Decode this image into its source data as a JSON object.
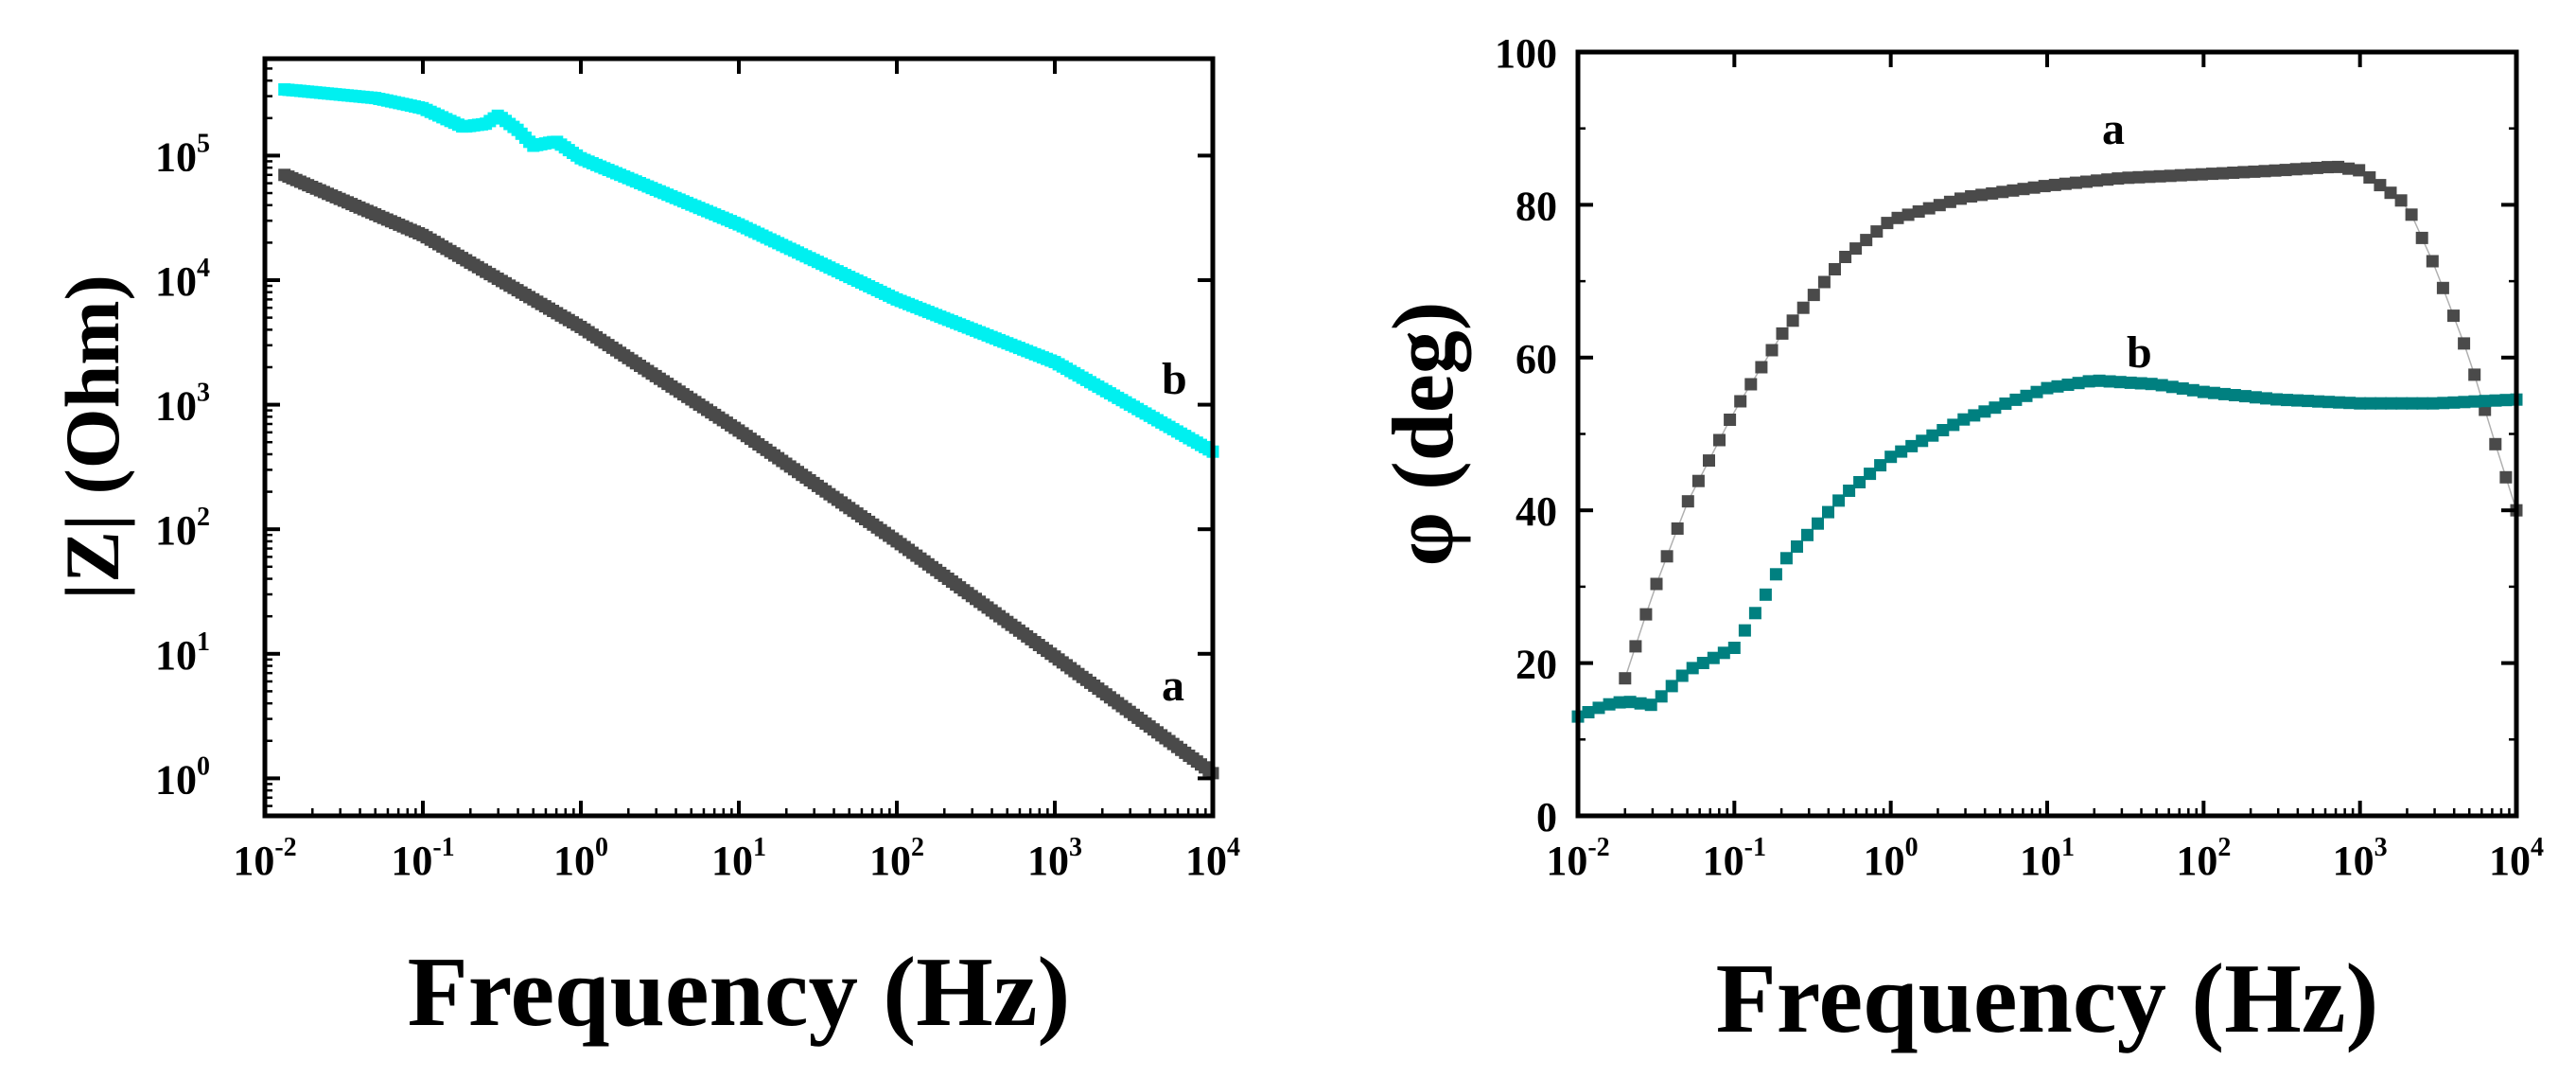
{
  "chart_data": [
    {
      "type": "scatter",
      "xscale": "log",
      "yscale": "log",
      "xlabel": "Frequency (Hz)",
      "ylabel": "|Z| (Ohm)",
      "xlim": [
        0.01,
        10000
      ],
      "ylim": [
        0.5,
        600000
      ],
      "xticks": [
        0.01,
        0.1,
        1,
        10,
        100,
        1000,
        10000
      ],
      "xtick_labels": [
        {
          "base": "10",
          "exp": "-2"
        },
        {
          "base": "10",
          "exp": "-1"
        },
        {
          "base": "10",
          "exp": "0"
        },
        {
          "base": "10",
          "exp": "1"
        },
        {
          "base": "10",
          "exp": "2"
        },
        {
          "base": "10",
          "exp": "3"
        },
        {
          "base": "10",
          "exp": "4"
        }
      ],
      "yticks": [
        1,
        10,
        100,
        1000,
        10000,
        100000
      ],
      "ytick_labels": [
        {
          "base": "10",
          "exp": "0"
        },
        {
          "base": "10",
          "exp": "1"
        },
        {
          "base": "10",
          "exp": "2"
        },
        {
          "base": "10",
          "exp": "3"
        },
        {
          "base": "10",
          "exp": "4"
        },
        {
          "base": "10",
          "exp": "5"
        }
      ],
      "series": [
        {
          "name": "a",
          "label": "a",
          "color": "#4a4a4a",
          "x": [
            0.0133,
            0.1,
            1,
            10,
            100,
            1000,
            10000
          ],
          "y": [
            70000,
            23000,
            4200,
            620,
            80,
            9.5,
            1.1
          ]
        },
        {
          "name": "b",
          "label": "b",
          "color": "#00f0f0",
          "x": [
            0.0133,
            0.05,
            0.1,
            0.18,
            0.25,
            0.3,
            0.4,
            0.5,
            0.7,
            1,
            10,
            100,
            1000,
            10000
          ],
          "y": [
            340000,
            290000,
            240000,
            170000,
            180000,
            210000,
            160000,
            120000,
            130000,
            95000,
            28000,
            7000,
            2200,
            420
          ]
        }
      ]
    },
    {
      "type": "scatter",
      "xscale": "log",
      "yscale": "linear",
      "xlabel": "Frequency (Hz)",
      "ylabel": "φ (deg)",
      "xlim": [
        0.01,
        10000
      ],
      "ylim": [
        0,
        100
      ],
      "xticks": [
        0.01,
        0.1,
        1,
        10,
        100,
        1000,
        10000
      ],
      "xtick_labels": [
        {
          "base": "10",
          "exp": "-2"
        },
        {
          "base": "10",
          "exp": "-1"
        },
        {
          "base": "10",
          "exp": "0"
        },
        {
          "base": "10",
          "exp": "1"
        },
        {
          "base": "10",
          "exp": "2"
        },
        {
          "base": "10",
          "exp": "3"
        },
        {
          "base": "10",
          "exp": "4"
        }
      ],
      "yticks": [
        0,
        20,
        40,
        60,
        80,
        100
      ],
      "ytick_labels": [
        "0",
        "20",
        "40",
        "60",
        "80",
        "100"
      ],
      "series": [
        {
          "name": "a",
          "label": "a",
          "color": "#4a4a4a",
          "x": [
            0.02,
            0.03,
            0.05,
            0.1,
            0.2,
            0.5,
            1,
            3,
            10,
            30,
            100,
            300,
            700,
            1000,
            2000,
            3000,
            5000,
            7000,
            10000
          ],
          "y": [
            18,
            29,
            41,
            53,
            63,
            73,
            78,
            81,
            82.5,
            83.5,
            84,
            84.5,
            85,
            84.5,
            80,
            72,
            60,
            50,
            40
          ]
        },
        {
          "name": "b",
          "label": "b",
          "color": "#008080",
          "x": [
            0.01,
            0.015,
            0.02,
            0.03,
            0.05,
            0.1,
            0.15,
            0.2,
            0.3,
            0.5,
            1,
            3,
            10,
            20,
            50,
            100,
            300,
            1000,
            3000,
            10000
          ],
          "y": [
            13,
            14.5,
            15,
            14.5,
            19,
            22,
            28,
            33,
            37,
            42,
            47,
            52,
            56,
            57,
            56.5,
            55.5,
            54.5,
            54,
            54,
            54.5
          ]
        }
      ]
    }
  ]
}
